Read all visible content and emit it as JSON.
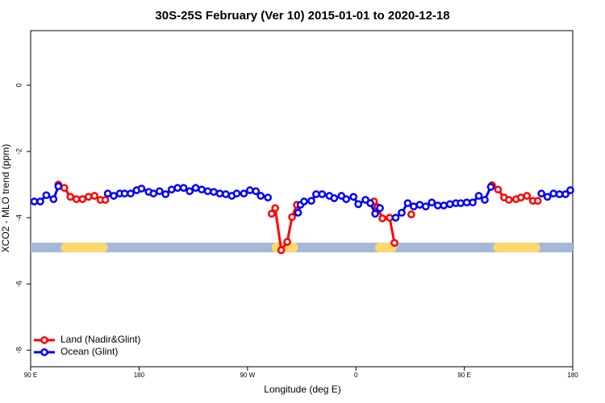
{
  "chart_data": {
    "type": "line",
    "title": "30S-25S February (Ver 10)   2015-01-01 to 2020-12-18",
    "xlabel": "Longitude (deg E)",
    "ylabel": "XCO2 - MLO trend (ppm)",
    "xlim": [
      90,
      540
    ],
    "xticks": [
      {
        "value": 90,
        "label": "90 E"
      },
      {
        "value": 180,
        "label": "180"
      },
      {
        "value": 270,
        "label": "90 W"
      },
      {
        "value": 360,
        "label": "0"
      },
      {
        "value": 450,
        "label": "90 E"
      },
      {
        "value": 540,
        "label": "180"
      }
    ],
    "ylim": [
      -8.5,
      1.65
    ],
    "yticks": [
      0,
      -2,
      -4,
      -6,
      -8
    ],
    "legend": "bottom-left",
    "band_y": -4.9,
    "land_color": "#fcd86f",
    "ocean_color": "#a4b8d6",
    "land_spans": [
      [
        115,
        154
      ],
      [
        290,
        312
      ],
      [
        376,
        394
      ],
      [
        474,
        513
      ]
    ],
    "series": [
      {
        "name": "Land (Nadir&Glint)",
        "color": "#ff0000",
        "x": [
          113,
          118,
          123,
          128,
          133,
          138,
          143,
          148,
          152,
          220,
          290,
          293,
          298,
          303,
          307,
          311,
          340,
          375,
          378,
          382,
          388,
          392,
          399,
          406,
          440,
          473,
          478,
          483,
          487,
          493,
          497,
          502,
          507,
          511
        ],
        "values": [
          -3.0,
          -3.1,
          -3.37,
          -3.44,
          -3.44,
          -3.37,
          -3.34,
          -3.46,
          -3.46,
          null,
          -3.88,
          -3.71,
          -4.98,
          -4.73,
          -3.98,
          -3.61,
          null,
          -3.51,
          -3.68,
          -4.02,
          -4.0,
          -4.76,
          null,
          -3.9,
          null,
          -3.02,
          -3.15,
          -3.39,
          -3.46,
          -3.44,
          -3.39,
          -3.34,
          -3.49,
          -3.49
        ]
      },
      {
        "name": "Ocean (Glint)",
        "color": "#0000ff",
        "x": [
          93,
          98,
          103,
          109,
          113,
          130,
          154,
          159,
          164,
          168,
          173,
          178,
          182,
          188,
          192,
          197,
          202,
          207,
          212,
          217,
          222,
          227,
          232,
          237,
          242,
          247,
          252,
          257,
          261,
          267,
          272,
          277,
          281,
          287,
          300,
          312,
          314,
          317,
          323,
          327,
          332,
          338,
          342,
          348,
          352,
          358,
          362,
          368,
          372,
          376,
          380,
          385,
          393,
          398,
          403,
          408,
          413,
          418,
          423,
          428,
          433,
          438,
          443,
          447,
          452,
          457,
          462,
          467,
          472,
          490,
          514,
          519,
          524,
          529,
          534,
          538
        ],
        "values": [
          -3.51,
          -3.51,
          -3.32,
          -3.44,
          -3.05,
          null,
          -3.27,
          -3.34,
          -3.27,
          -3.27,
          -3.27,
          -3.17,
          -3.12,
          -3.22,
          -3.27,
          -3.2,
          -3.29,
          -3.15,
          -3.1,
          -3.1,
          -3.2,
          -3.1,
          -3.15,
          -3.2,
          -3.22,
          -3.27,
          -3.29,
          -3.34,
          -3.27,
          -3.27,
          -3.17,
          -3.2,
          -3.34,
          -3.39,
          null,
          -3.85,
          -3.61,
          -3.51,
          -3.49,
          -3.29,
          -3.29,
          -3.34,
          -3.41,
          -3.34,
          -3.44,
          -3.37,
          -3.59,
          -3.46,
          -3.56,
          -3.88,
          -3.71,
          null,
          -4.0,
          -3.85,
          -3.56,
          -3.66,
          -3.61,
          -3.66,
          -3.54,
          -3.63,
          -3.63,
          -3.59,
          -3.56,
          -3.56,
          -3.54,
          -3.54,
          -3.34,
          -3.46,
          -3.07,
          null,
          -3.27,
          -3.37,
          -3.27,
          -3.29,
          -3.29,
          -3.17
        ]
      }
    ]
  }
}
